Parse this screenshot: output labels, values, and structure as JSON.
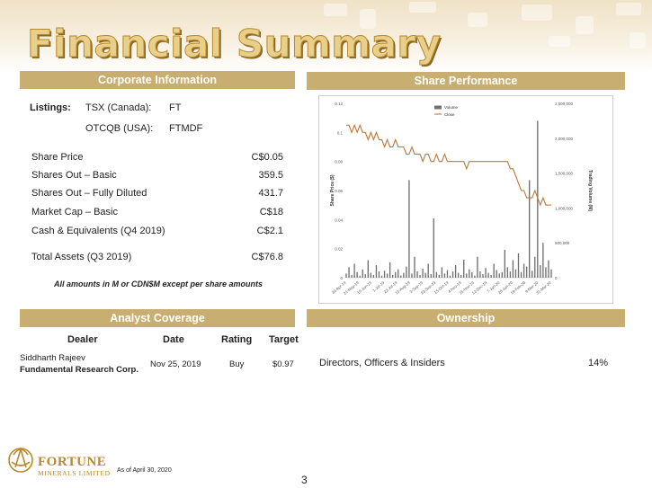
{
  "header": {
    "title": "Financial Summary"
  },
  "corporate": {
    "heading": "Corporate Information",
    "listings_label": "Listings:",
    "listings": [
      {
        "exchange": "TSX (Canada):",
        "ticker": "FT"
      },
      {
        "exchange": "OTCQB (USA):",
        "ticker": "FTMDF"
      }
    ],
    "metrics": [
      {
        "label": "Share Price",
        "value": "C$0.05"
      },
      {
        "label": "Shares Out – Basic",
        "value": "359.5"
      },
      {
        "label": "Shares Out – Fully Diluted",
        "value": "431.7"
      },
      {
        "label": "Market Cap – Basic",
        "value": "C$18"
      },
      {
        "label": "Cash & Equivalents (Q4 2019)",
        "value": "C$2.1"
      },
      {
        "label": "Total Assets (Q3 2019)",
        "value": "C$76.8"
      }
    ],
    "note": "All amounts in M or CDN$M except per share amounts"
  },
  "share_performance": {
    "heading": "Share Performance"
  },
  "chart_data": {
    "type": "line",
    "title": "",
    "ylabel": "Share Price ($)",
    "y2label": "Trading Volume (M)",
    "ylim": [
      0,
      0.12
    ],
    "y2lim": [
      0,
      2500000
    ],
    "y_ticks": [
      "0.12",
      "0.1",
      "0.08",
      "0.06",
      "0.04",
      "0.02",
      "0"
    ],
    "y2_ticks": [
      "2,500,000",
      "2,000,000",
      "1,500,000",
      "1,000,000",
      "500,000",
      "0"
    ],
    "x_ticks": [
      "30-Apr-19",
      "21-May-19",
      "10-Jun-19",
      "1-Jul-19",
      "23-Jul-19",
      "13-Aug-19",
      "3-Sep-19",
      "23-Sep-19",
      "15-Oct-19",
      "4-Nov-19",
      "25-Nov-19",
      "13-Dec-19",
      "7-Jan-20",
      "28-Jan-20",
      "18-Feb-20",
      "9-Mar-20",
      "31-Mar-20"
    ],
    "legend": [
      "Volume",
      "Close"
    ],
    "legend_placement": "top-center",
    "colors": {
      "close": "#c0773a",
      "volume": "#707070"
    },
    "series": [
      {
        "name": "Close",
        "values": [
          0.105,
          0.105,
          0.1,
          0.105,
          0.1,
          0.105,
          0.1,
          0.1,
          0.095,
          0.1,
          0.095,
          0.1,
          0.095,
          0.095,
          0.09,
          0.095,
          0.09,
          0.09,
          0.095,
          0.09,
          0.09,
          0.09,
          0.085,
          0.085,
          0.09,
          0.085,
          0.085,
          0.085,
          0.08,
          0.085,
          0.085,
          0.08,
          0.08,
          0.085,
          0.08,
          0.08,
          0.085,
          0.08,
          0.08,
          0.08,
          0.08,
          0.08,
          0.08,
          0.08,
          0.075,
          0.08,
          0.08,
          0.08,
          0.08,
          0.08,
          0.08,
          0.08,
          0.08,
          0.08,
          0.08,
          0.08,
          0.08,
          0.08,
          0.08,
          0.08,
          0.075,
          0.075,
          0.07,
          0.065,
          0.06,
          0.06,
          0.055,
          0.055,
          0.055,
          0.06,
          0.055,
          0.05,
          0.055,
          0.05,
          0.05,
          0.05
        ]
      },
      {
        "name": "Volume",
        "values": [
          60000,
          150000,
          40000,
          200000,
          80000,
          30000,
          120000,
          50000,
          250000,
          70000,
          40000,
          180000,
          90000,
          30000,
          100000,
          60000,
          220000,
          40000,
          80000,
          120000,
          30000,
          70000,
          160000,
          1400000,
          60000,
          300000,
          90000,
          40000,
          130000,
          70000,
          200000,
          50000,
          850000,
          80000,
          40000,
          150000,
          60000,
          110000,
          30000,
          90000,
          180000,
          70000,
          40000,
          260000,
          60000,
          120000,
          80000,
          30000,
          300000,
          90000,
          50000,
          140000,
          70000,
          40000,
          200000,
          110000,
          60000,
          80000,
          400000,
          150000,
          90000,
          250000,
          120000,
          350000,
          80000,
          200000,
          160000,
          1400000,
          100000,
          300000,
          2250000,
          180000,
          500000,
          150000,
          250000,
          120000
        ]
      }
    ]
  },
  "analyst": {
    "heading": "Analyst Coverage",
    "columns": [
      "Dealer",
      "Date",
      "Rating",
      "Target"
    ],
    "rows": [
      {
        "analyst": "Siddharth Rajeev",
        "firm": "Fundamental Research Corp.",
        "date": "Nov 25, 2019",
        "rating": "Buy",
        "target": "$0.97"
      }
    ]
  },
  "ownership": {
    "heading": "Ownership",
    "rows": [
      {
        "label": "Directors, Officers & Insiders",
        "value": "14%"
      }
    ]
  },
  "footer": {
    "logo_name": "FORTUNE",
    "logo_sub": "MINERALS LIMITED",
    "as_of": "As of  April 30, 2020",
    "page_number": "3"
  }
}
